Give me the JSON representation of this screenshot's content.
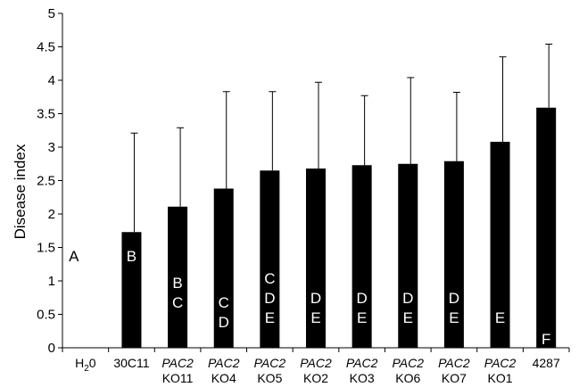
{
  "chart_data": {
    "type": "bar",
    "title": "",
    "xlabel": "",
    "ylabel": "Disease index",
    "ylim": [
      0,
      5
    ],
    "yticks": [
      "0",
      "0.5",
      "1",
      "1.5",
      "2",
      "2.5",
      "3",
      "3.5",
      "4",
      "4.5",
      "5"
    ],
    "grid": false,
    "legend": "none",
    "categories": [
      {
        "line1": "H",
        "line1_sub": "2",
        "line1_rest": "0",
        "line2": "",
        "italic_prefix": false
      },
      {
        "line1": "30C11",
        "line1_sub": "",
        "line1_rest": "",
        "line2": "",
        "italic_prefix": false
      },
      {
        "line1": "PAC2",
        "line1_sub": "",
        "line1_rest": "",
        "line2": "KO11",
        "italic_prefix": true
      },
      {
        "line1": "PAC2",
        "line1_sub": "",
        "line1_rest": "",
        "line2": "KO4",
        "italic_prefix": true
      },
      {
        "line1": "PAC2",
        "line1_sub": "",
        "line1_rest": "",
        "line2": "KO5",
        "italic_prefix": true
      },
      {
        "line1": "PAC2",
        "line1_sub": "",
        "line1_rest": "",
        "line2": "KO2",
        "italic_prefix": true
      },
      {
        "line1": "PAC2",
        "line1_sub": "",
        "line1_rest": "",
        "line2": "KO3",
        "italic_prefix": true
      },
      {
        "line1": "PAC2",
        "line1_sub": "",
        "line1_rest": "",
        "line2": "KO6",
        "italic_prefix": true
      },
      {
        "line1": "PAC2",
        "line1_sub": "",
        "line1_rest": "",
        "line2": "KO7",
        "italic_prefix": true
      },
      {
        "line1": "PAC2",
        "line1_sub": "",
        "line1_rest": "",
        "line2": "KO1",
        "italic_prefix": true
      },
      {
        "line1": "4287",
        "line1_sub": "",
        "line1_rest": "",
        "line2": "",
        "italic_prefix": false
      }
    ],
    "values": [
      0,
      1.73,
      2.11,
      2.38,
      2.65,
      2.68,
      2.73,
      2.75,
      2.79,
      3.08,
      3.59
    ],
    "error_upper": [
      0,
      3.21,
      3.29,
      3.83,
      3.83,
      3.97,
      3.77,
      4.04,
      3.82,
      4.35,
      4.54
    ],
    "group_letters": [
      [
        "A"
      ],
      [
        "B"
      ],
      [
        "B",
        "C"
      ],
      [
        "C",
        "D"
      ],
      [
        "C",
        "D",
        "E"
      ],
      [
        "D",
        "E"
      ],
      [
        "D",
        "E"
      ],
      [
        "D",
        "E"
      ],
      [
        "D",
        "E"
      ],
      [
        "E"
      ],
      [
        "F"
      ]
    ],
    "bar_color": "#000000",
    "letter_on_bar_color": "#ffffff",
    "letter_off_bar_color": "#000000"
  }
}
